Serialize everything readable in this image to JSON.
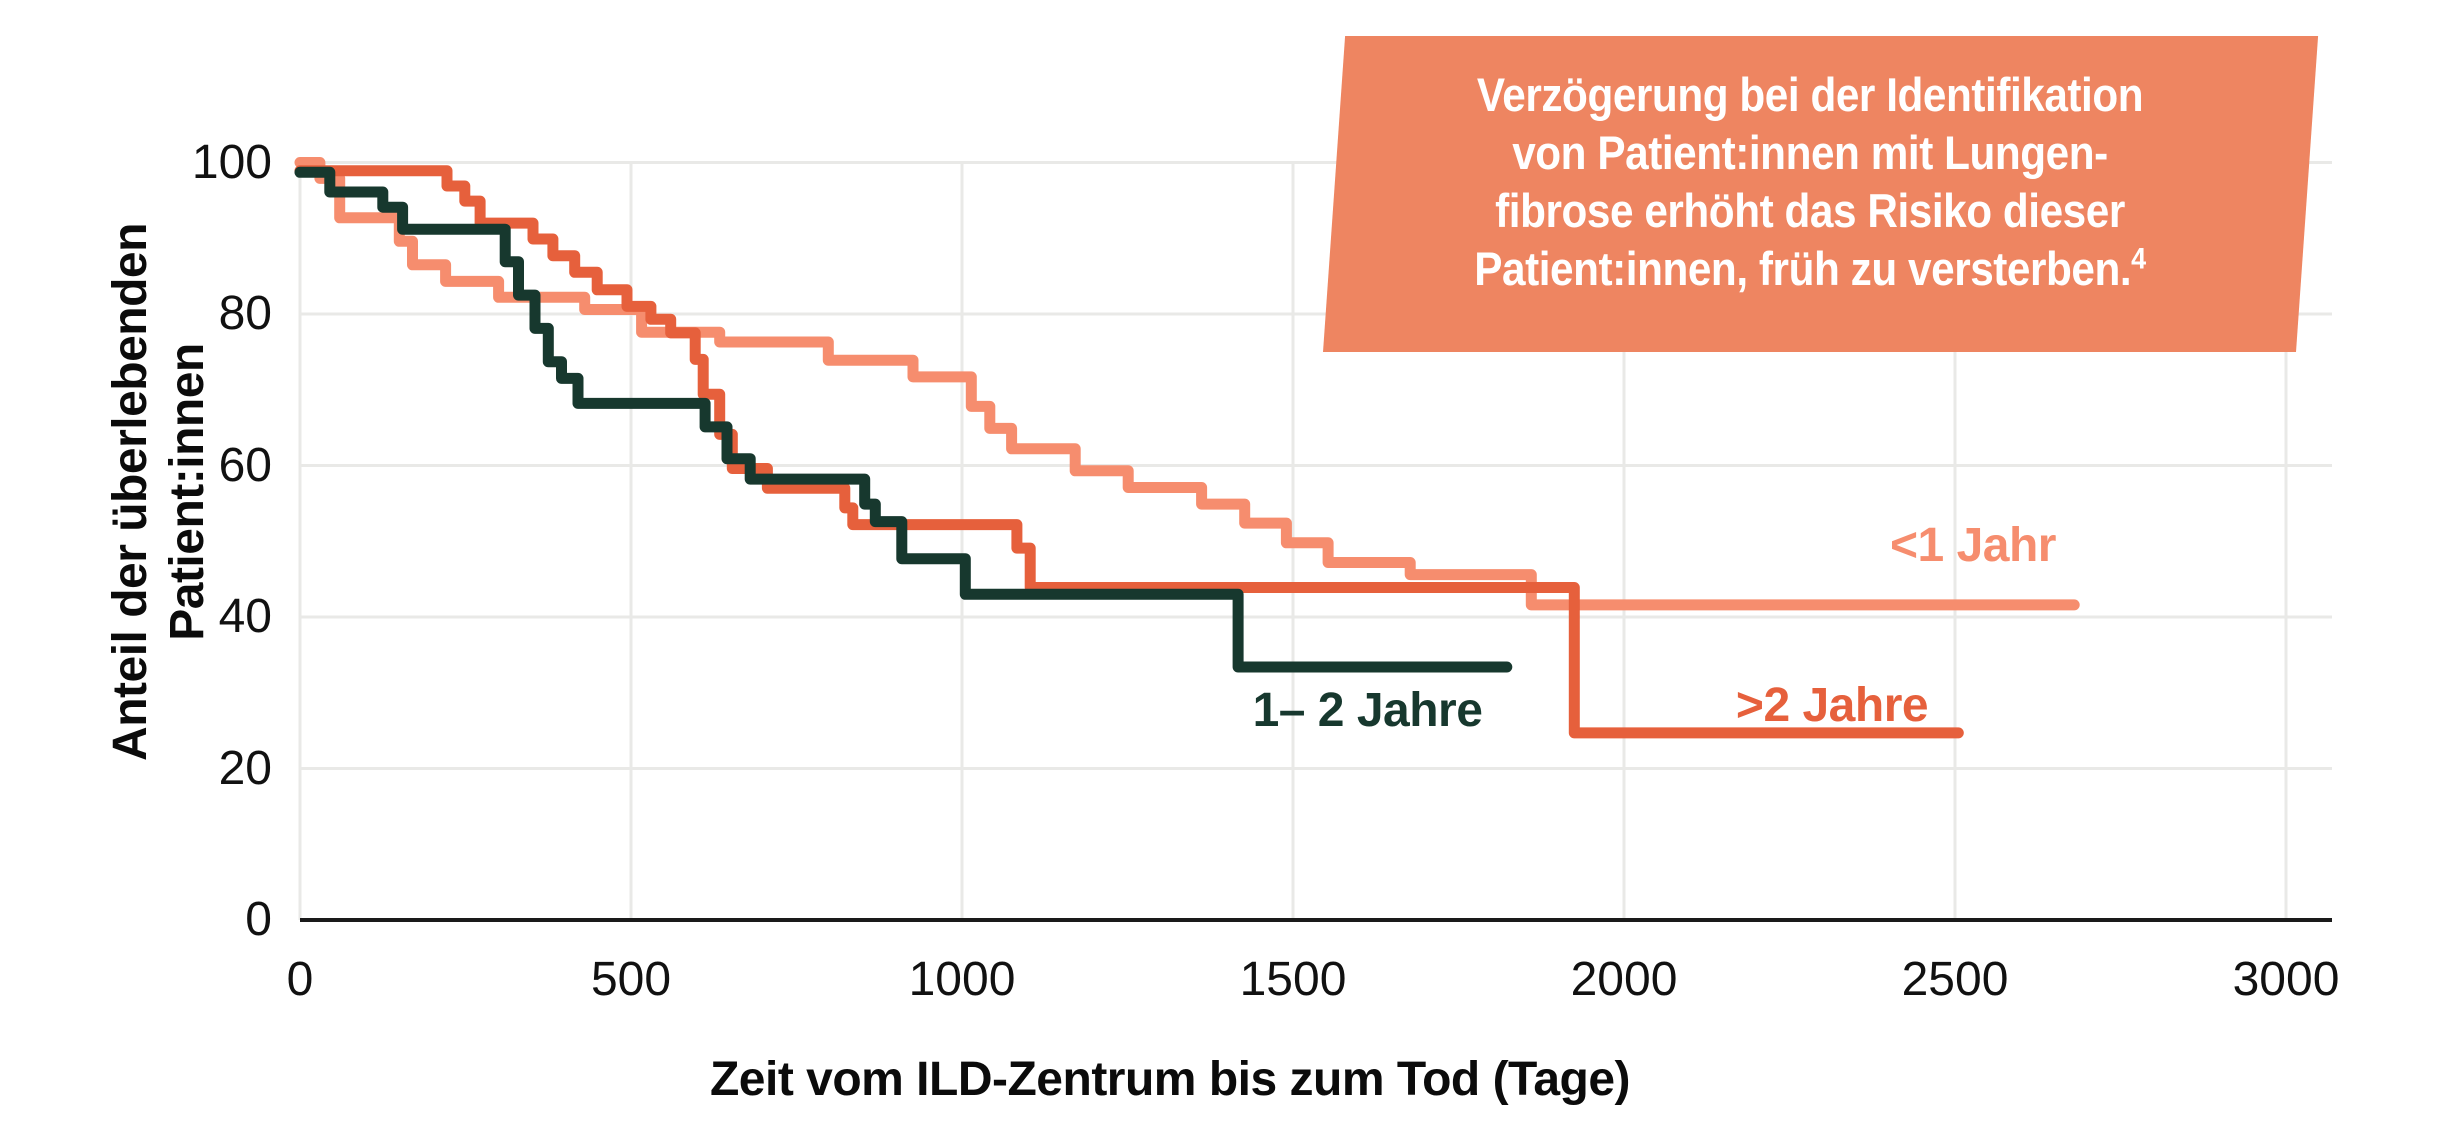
{
  "annotation": {
    "lines": [
      "Verzögerung bei der Identifikation",
      "von Patient:innen mit Lungen-",
      "fibrose erhöht das Risiko dieser",
      "Patient:innen, früh zu versterben."
    ],
    "footnote_marker": "4",
    "bg_color": "#EE8561",
    "text_color": "#FFFFFF"
  },
  "chart_data": {
    "type": "line",
    "subtype": "kaplan-meier-step-curves",
    "title": "",
    "xlabel": "Zeit vom ILD-Zentrum bis zum Tod (Tage)",
    "ylabel": "Anteil der überlebenden Patient:innen",
    "ylabel_line1": "Anteil der überlebenden",
    "ylabel_line2": "Patient:innen",
    "xlim": [
      0,
      3000
    ],
    "ylim": [
      0,
      100
    ],
    "x_ticks": [
      0,
      500,
      1000,
      1500,
      2000,
      2500,
      3000
    ],
    "y_ticks": [
      0,
      20,
      40,
      60,
      80,
      100
    ],
    "grid": true,
    "grid_color": "#E9E9E7",
    "axis_color": "#1A1A1A",
    "legend_position": "inline-labels",
    "series": [
      {
        "name": "<1 Jahr",
        "color": "#F68D6E",
        "points": [
          [
            0,
            100
          ],
          [
            30,
            97.9
          ],
          [
            60,
            92.7
          ],
          [
            150,
            89.6
          ],
          [
            170,
            86.5
          ],
          [
            220,
            84.3
          ],
          [
            300,
            82.2
          ],
          [
            430,
            80.6
          ],
          [
            516,
            77.6
          ],
          [
            634,
            76.3
          ],
          [
            798,
            73.9
          ],
          [
            926,
            71.7
          ],
          [
            1014,
            67.8
          ],
          [
            1042,
            64.9
          ],
          [
            1075,
            62.2
          ],
          [
            1171,
            59.3
          ],
          [
            1251,
            57.1
          ],
          [
            1362,
            54.9
          ],
          [
            1427,
            52.4
          ],
          [
            1490,
            49.8
          ],
          [
            1553,
            47.2
          ],
          [
            1677,
            45.6
          ],
          [
            1860,
            41.6
          ]
        ],
        "end_time": 2680,
        "final_value": 41.6
      },
      {
        "name": ">2 Jahre",
        "color": "#E6603C",
        "points": [
          [
            0,
            98.9
          ],
          [
            222,
            96.9
          ],
          [
            249,
            94.9
          ],
          [
            272,
            92.0
          ],
          [
            352,
            89.9
          ],
          [
            382,
            87.7
          ],
          [
            415,
            85.5
          ],
          [
            449,
            83.2
          ],
          [
            494,
            81.0
          ],
          [
            530,
            79.3
          ],
          [
            560,
            77.5
          ],
          [
            597,
            74.0
          ],
          [
            609,
            69.4
          ],
          [
            634,
            64.1
          ],
          [
            653,
            59.6
          ],
          [
            706,
            57.0
          ],
          [
            823,
            54.4
          ],
          [
            835,
            52.2
          ],
          [
            1083,
            49.1
          ],
          [
            1103,
            43.9
          ],
          [
            1925,
            24.7
          ]
        ],
        "end_time": 2505,
        "final_value": 24.7
      },
      {
        "name": "1– 2 Jahre",
        "color": "#17382E",
        "points": [
          [
            0,
            98.7
          ],
          [
            45,
            96.1
          ],
          [
            125,
            94.1
          ],
          [
            155,
            91.2
          ],
          [
            310,
            86.9
          ],
          [
            330,
            82.5
          ],
          [
            355,
            78.1
          ],
          [
            375,
            73.7
          ],
          [
            395,
            71.5
          ],
          [
            420,
            68.2
          ],
          [
            612,
            65.1
          ],
          [
            645,
            60.9
          ],
          [
            680,
            58.2
          ],
          [
            853,
            54.9
          ],
          [
            869,
            52.6
          ],
          [
            909,
            47.7
          ],
          [
            1005,
            43.0
          ],
          [
            1417,
            33.4
          ]
        ],
        "end_time": 1823,
        "final_value": 33.4
      }
    ]
  }
}
